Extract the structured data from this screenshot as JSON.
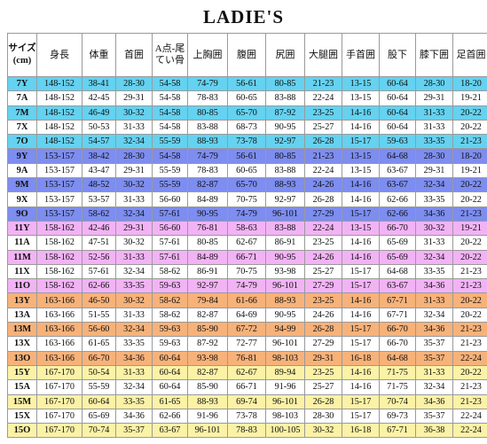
{
  "title": "LADIE'S",
  "table": {
    "headers": [
      "サイズ(cm)",
      "身長",
      "体重",
      "首囲",
      "A点-尾てい骨",
      "上胸囲",
      "腹囲",
      "尻囲",
      "大腿囲",
      "手首囲",
      "股下",
      "膝下囲",
      "足首囲"
    ],
    "rows": [
      {
        "cells": [
          "7Y",
          "148-152",
          "38-41",
          "28-30",
          "54-58",
          "74-79",
          "56-61",
          "80-85",
          "21-23",
          "13-15",
          "60-64",
          "28-30",
          "18-20"
        ],
        "color": "#64d2f0"
      },
      {
        "cells": [
          "7A",
          "148-152",
          "42-45",
          "29-31",
          "54-58",
          "78-83",
          "60-65",
          "83-88",
          "22-24",
          "13-15",
          "60-64",
          "29-31",
          "19-21"
        ],
        "color": "#ffffff"
      },
      {
        "cells": [
          "7M",
          "148-152",
          "46-49",
          "30-32",
          "54-58",
          "80-85",
          "65-70",
          "87-92",
          "23-25",
          "14-16",
          "60-64",
          "31-33",
          "20-22"
        ],
        "color": "#64d2f0"
      },
      {
        "cells": [
          "7X",
          "148-152",
          "50-53",
          "31-33",
          "54-58",
          "83-88",
          "68-73",
          "90-95",
          "25-27",
          "14-16",
          "60-64",
          "31-33",
          "20-22"
        ],
        "color": "#ffffff"
      },
      {
        "cells": [
          "7O",
          "148-152",
          "54-57",
          "32-34",
          "55-59",
          "88-93",
          "73-78",
          "92-97",
          "26-28",
          "15-17",
          "59-63",
          "33-35",
          "21-23"
        ],
        "color": "#64d2f0"
      },
      {
        "cells": [
          "9Y",
          "153-157",
          "38-42",
          "28-30",
          "54-58",
          "74-79",
          "56-61",
          "80-85",
          "21-23",
          "13-15",
          "64-68",
          "28-30",
          "18-20"
        ],
        "color": "#7d8df0"
      },
      {
        "cells": [
          "9A",
          "153-157",
          "43-47",
          "29-31",
          "55-59",
          "78-83",
          "60-65",
          "83-88",
          "22-24",
          "13-15",
          "63-67",
          "29-31",
          "19-21"
        ],
        "color": "#ffffff"
      },
      {
        "cells": [
          "9M",
          "153-157",
          "48-52",
          "30-32",
          "55-59",
          "82-87",
          "65-70",
          "88-93",
          "24-26",
          "14-16",
          "63-67",
          "32-34",
          "20-22"
        ],
        "color": "#7d8df0"
      },
      {
        "cells": [
          "9X",
          "153-157",
          "53-57",
          "31-33",
          "56-60",
          "84-89",
          "70-75",
          "92-97",
          "26-28",
          "14-16",
          "62-66",
          "33-35",
          "20-22"
        ],
        "color": "#ffffff"
      },
      {
        "cells": [
          "9O",
          "153-157",
          "58-62",
          "32-34",
          "57-61",
          "90-95",
          "74-79",
          "96-101",
          "27-29",
          "15-17",
          "62-66",
          "34-36",
          "21-23"
        ],
        "color": "#7d8df0"
      },
      {
        "cells": [
          "11Y",
          "158-162",
          "42-46",
          "29-31",
          "56-60",
          "76-81",
          "58-63",
          "83-88",
          "22-24",
          "13-15",
          "66-70",
          "30-32",
          "19-21"
        ],
        "color": "#f2b3f5"
      },
      {
        "cells": [
          "11A",
          "158-162",
          "47-51",
          "30-32",
          "57-61",
          "80-85",
          "62-67",
          "86-91",
          "23-25",
          "14-16",
          "65-69",
          "31-33",
          "20-22"
        ],
        "color": "#ffffff"
      },
      {
        "cells": [
          "11M",
          "158-162",
          "52-56",
          "31-33",
          "57-61",
          "84-89",
          "66-71",
          "90-95",
          "24-26",
          "14-16",
          "65-69",
          "32-34",
          "20-22"
        ],
        "color": "#f2b3f5"
      },
      {
        "cells": [
          "11X",
          "158-162",
          "57-61",
          "32-34",
          "58-62",
          "86-91",
          "70-75",
          "93-98",
          "25-27",
          "15-17",
          "64-68",
          "33-35",
          "21-23"
        ],
        "color": "#ffffff"
      },
      {
        "cells": [
          "11O",
          "158-162",
          "62-66",
          "33-35",
          "59-63",
          "92-97",
          "74-79",
          "96-101",
          "27-29",
          "15-17",
          "63-67",
          "34-36",
          "21-23"
        ],
        "color": "#f2b3f5"
      },
      {
        "cells": [
          "13Y",
          "163-166",
          "46-50",
          "30-32",
          "58-62",
          "79-84",
          "61-66",
          "88-93",
          "23-25",
          "14-16",
          "67-71",
          "31-33",
          "20-22"
        ],
        "color": "#f7b27a"
      },
      {
        "cells": [
          "13A",
          "163-166",
          "51-55",
          "31-33",
          "58-62",
          "82-87",
          "64-69",
          "90-95",
          "24-26",
          "14-16",
          "67-71",
          "32-34",
          "20-22"
        ],
        "color": "#ffffff"
      },
      {
        "cells": [
          "13M",
          "163-166",
          "56-60",
          "32-34",
          "59-63",
          "85-90",
          "67-72",
          "94-99",
          "26-28",
          "15-17",
          "66-70",
          "34-36",
          "21-23"
        ],
        "color": "#f7b27a"
      },
      {
        "cells": [
          "13X",
          "163-166",
          "61-65",
          "33-35",
          "59-63",
          "87-92",
          "72-77",
          "96-101",
          "27-29",
          "15-17",
          "66-70",
          "35-37",
          "21-23"
        ],
        "color": "#ffffff"
      },
      {
        "cells": [
          "13O",
          "163-166",
          "66-70",
          "34-36",
          "60-64",
          "93-98",
          "76-81",
          "98-103",
          "29-31",
          "16-18",
          "64-68",
          "35-37",
          "22-24"
        ],
        "color": "#f7b27a"
      },
      {
        "cells": [
          "15Y",
          "167-170",
          "50-54",
          "31-33",
          "60-64",
          "82-87",
          "62-67",
          "89-94",
          "23-25",
          "14-16",
          "71-75",
          "31-33",
          "20-22"
        ],
        "color": "#fbf2a6"
      },
      {
        "cells": [
          "15A",
          "167-170",
          "55-59",
          "32-34",
          "60-64",
          "85-90",
          "66-71",
          "91-96",
          "25-27",
          "14-16",
          "71-75",
          "32-34",
          "21-23"
        ],
        "color": "#ffffff"
      },
      {
        "cells": [
          "15M",
          "167-170",
          "60-64",
          "33-35",
          "61-65",
          "88-93",
          "69-74",
          "96-101",
          "26-28",
          "15-17",
          "70-74",
          "34-36",
          "21-23"
        ],
        "color": "#fbf2a6"
      },
      {
        "cells": [
          "15X",
          "167-170",
          "65-69",
          "34-36",
          "62-66",
          "91-96",
          "73-78",
          "98-103",
          "28-30",
          "15-17",
          "69-73",
          "35-37",
          "22-24"
        ],
        "color": "#ffffff"
      },
      {
        "cells": [
          "15O",
          "167-170",
          "70-74",
          "35-37",
          "63-67",
          "96-101",
          "78-83",
          "100-105",
          "30-32",
          "16-18",
          "67-71",
          "36-38",
          "22-24"
        ],
        "color": "#fbf2a6"
      }
    ]
  }
}
